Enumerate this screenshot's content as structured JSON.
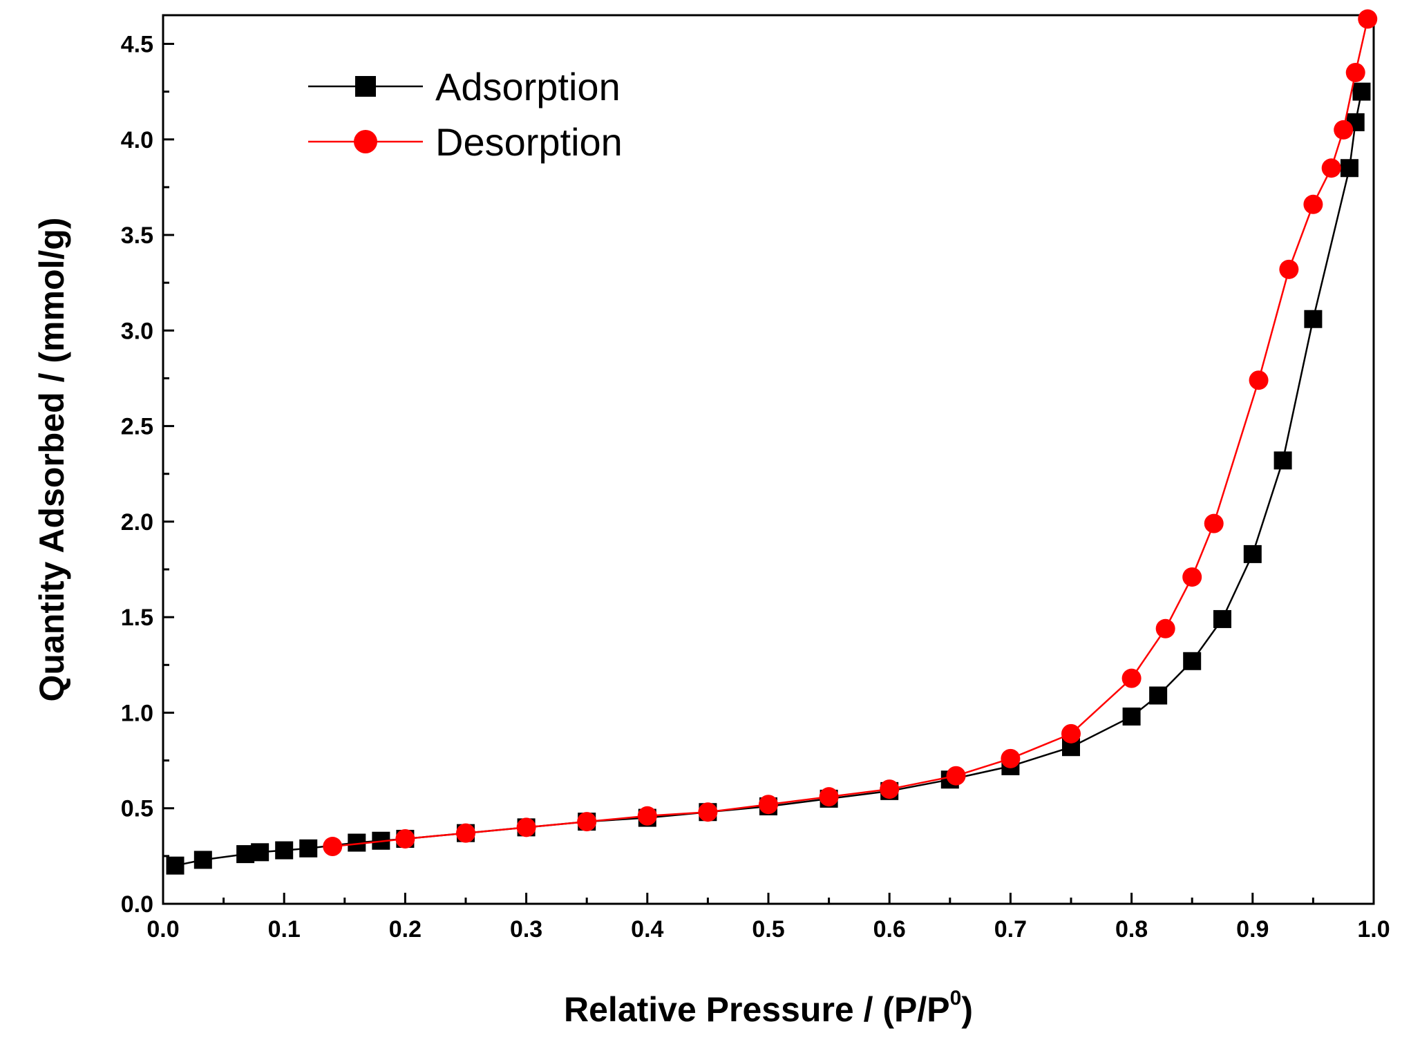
{
  "chart_data": {
    "type": "scatter",
    "xlabel": "Relative Pressure / (P/P",
    "xlabel_sup": "0",
    "xlabel_tail": ")",
    "ylabel": "Quantity Adsorbed / (mmol/g)",
    "xlim": [
      0.0,
      1.0
    ],
    "ylim": [
      0.0,
      4.65
    ],
    "x_ticks": [
      "0.0",
      "0.1",
      "0.2",
      "0.3",
      "0.4",
      "0.5",
      "0.6",
      "0.7",
      "0.8",
      "0.9",
      "1.0"
    ],
    "y_ticks": [
      "0.0",
      "0.5",
      "1.0",
      "1.5",
      "2.0",
      "2.5",
      "3.0",
      "3.5",
      "4.0",
      "4.5"
    ],
    "legend_position": "top-left",
    "series": [
      {
        "name": "Adsorption",
        "marker": "square",
        "color": "#000000",
        "points": [
          [
            0.01,
            0.2
          ],
          [
            0.033,
            0.23
          ],
          [
            0.068,
            0.26
          ],
          [
            0.08,
            0.27
          ],
          [
            0.1,
            0.28
          ],
          [
            0.12,
            0.29
          ],
          [
            0.16,
            0.32
          ],
          [
            0.18,
            0.33
          ],
          [
            0.2,
            0.34
          ],
          [
            0.25,
            0.37
          ],
          [
            0.3,
            0.4
          ],
          [
            0.35,
            0.43
          ],
          [
            0.4,
            0.45
          ],
          [
            0.45,
            0.48
          ],
          [
            0.5,
            0.51
          ],
          [
            0.55,
            0.55
          ],
          [
            0.6,
            0.59
          ],
          [
            0.65,
            0.65
          ],
          [
            0.7,
            0.72
          ],
          [
            0.75,
            0.82
          ],
          [
            0.8,
            0.98
          ],
          [
            0.822,
            1.09
          ],
          [
            0.85,
            1.27
          ],
          [
            0.875,
            1.49
          ],
          [
            0.9,
            1.83
          ],
          [
            0.925,
            2.32
          ],
          [
            0.95,
            3.06
          ],
          [
            0.98,
            3.85
          ],
          [
            0.985,
            4.09
          ],
          [
            0.99,
            4.25
          ]
        ]
      },
      {
        "name": "Desorption",
        "marker": "circle",
        "color": "#ff0000",
        "points": [
          [
            0.995,
            4.63
          ],
          [
            0.985,
            4.35
          ],
          [
            0.975,
            4.05
          ],
          [
            0.965,
            3.85
          ],
          [
            0.95,
            3.66
          ],
          [
            0.93,
            3.32
          ],
          [
            0.905,
            2.74
          ],
          [
            0.868,
            1.99
          ],
          [
            0.85,
            1.71
          ],
          [
            0.828,
            1.44
          ],
          [
            0.8,
            1.18
          ],
          [
            0.75,
            0.89
          ],
          [
            0.7,
            0.76
          ],
          [
            0.655,
            0.67
          ],
          [
            0.6,
            0.6
          ],
          [
            0.55,
            0.56
          ],
          [
            0.5,
            0.52
          ],
          [
            0.45,
            0.48
          ],
          [
            0.4,
            0.46
          ],
          [
            0.35,
            0.43
          ],
          [
            0.3,
            0.4
          ],
          [
            0.25,
            0.37
          ],
          [
            0.2,
            0.34
          ],
          [
            0.14,
            0.3
          ]
        ]
      }
    ]
  }
}
